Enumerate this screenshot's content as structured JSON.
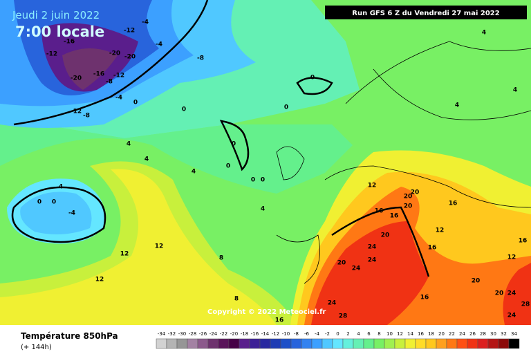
{
  "header": {
    "date": "Jeudi 2 juin 2022",
    "time": "7:00 locale",
    "run": "Run GFS 6 Z du Vendredi 27 mai 2022"
  },
  "map": {
    "copyright": "Copyright © 2022 Meteociel.fr",
    "contour_labels": [
      -4,
      -12,
      -16,
      -12,
      -20,
      -20,
      -4,
      -8,
      -16,
      -20,
      -12,
      -8,
      -4,
      0,
      0,
      -12,
      -8,
      4,
      0,
      0,
      4,
      4,
      4,
      4,
      0,
      0,
      4,
      0,
      0,
      4,
      0,
      0,
      -4,
      4,
      12,
      20,
      20,
      20,
      16,
      16,
      16,
      12,
      12,
      20,
      24,
      20,
      24,
      24,
      16,
      12,
      16,
      12,
      8,
      12,
      20,
      20,
      24,
      16,
      24,
      28,
      8,
      24,
      28,
      16
    ]
  },
  "footer": {
    "title": "Température 850hPa",
    "subtitle": "(+ 144h)"
  },
  "colorbar": {
    "values": [
      -34,
      -32,
      -30,
      -28,
      -26,
      -24,
      -22,
      -20,
      -18,
      -16,
      -14,
      -12,
      -10,
      -8,
      -6,
      -4,
      -2,
      0,
      2,
      4,
      6,
      8,
      10,
      12,
      14,
      16,
      18,
      20,
      22,
      24,
      26,
      28,
      30,
      32,
      34
    ],
    "colors": [
      "#d2d2d2",
      "#b4b4b4",
      "#969696",
      "#a382a3",
      "#8c5a8c",
      "#6e326e",
      "#5a145a",
      "#460046",
      "#5a1e8c",
      "#3c1e96",
      "#2828a0",
      "#1e3cb4",
      "#1e50c8",
      "#2864dc",
      "#3282f0",
      "#3ca0ff",
      "#50c8ff",
      "#64e6ff",
      "#64f0dc",
      "#64f0b4",
      "#64f08c",
      "#78f064",
      "#a0f050",
      "#c8f03c",
      "#f0f032",
      "#ffdc28",
      "#ffc81e",
      "#ffa01e",
      "#ff7814",
      "#ff5014",
      "#f03214",
      "#dc1e1e",
      "#b41414",
      "#8c0a0a",
      "#000000"
    ]
  }
}
